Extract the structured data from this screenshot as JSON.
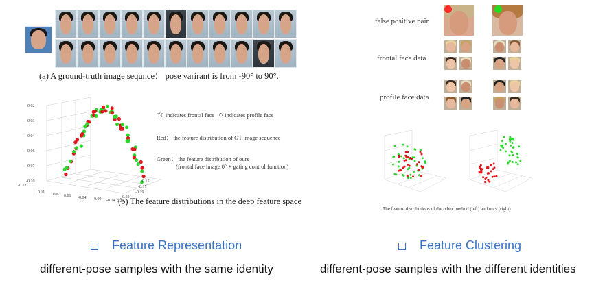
{
  "left_panel": {
    "caption_a": "(a)  A ground-truth  image sequnce： pose varirant is from -90° to 90°.",
    "caption_b": "(b)  The feature distributions in the deep feature space",
    "legend": {
      "star_text": "indicates frontal face",
      "circle_text": "indicates profile face",
      "red_text": "Red： the feature distribution of GT image sequence",
      "green_text": "Green： the feature distribution of ours",
      "green_subtext": "(frontal face image 0° + gating control function)"
    },
    "axis_ticks": {
      "z": [
        "0.02",
        "-0.03",
        "-0.04",
        "-0.06",
        "-0.07",
        "-0.10",
        "-0.12"
      ],
      "x": [
        "0.11",
        "0.06",
        "0.01",
        "-0.04",
        "-0.09",
        "-0.14",
        "-0.19",
        "-0.21"
      ],
      "y": [
        "-0.15",
        "-0.17",
        "-0.19",
        "-0.21"
      ]
    },
    "colors": {
      "red": "#e0141b",
      "green": "#2ed62e"
    }
  },
  "right_panel": {
    "row_labels": [
      "false positive pair",
      "frontal face data",
      "profile face data"
    ],
    "caption": "The feature distributions of the other method (left) and ours (right)",
    "marker_colors": {
      "false_left": "#ff2a2a",
      "false_right": "#22dd22"
    }
  },
  "sections": {
    "left": {
      "title": "Feature Representation",
      "description": "different-pose samples with the same identity"
    },
    "right": {
      "title": "Feature Clustering",
      "description": "different-pose samples with the different identities"
    },
    "accent": "#3a73c4"
  }
}
